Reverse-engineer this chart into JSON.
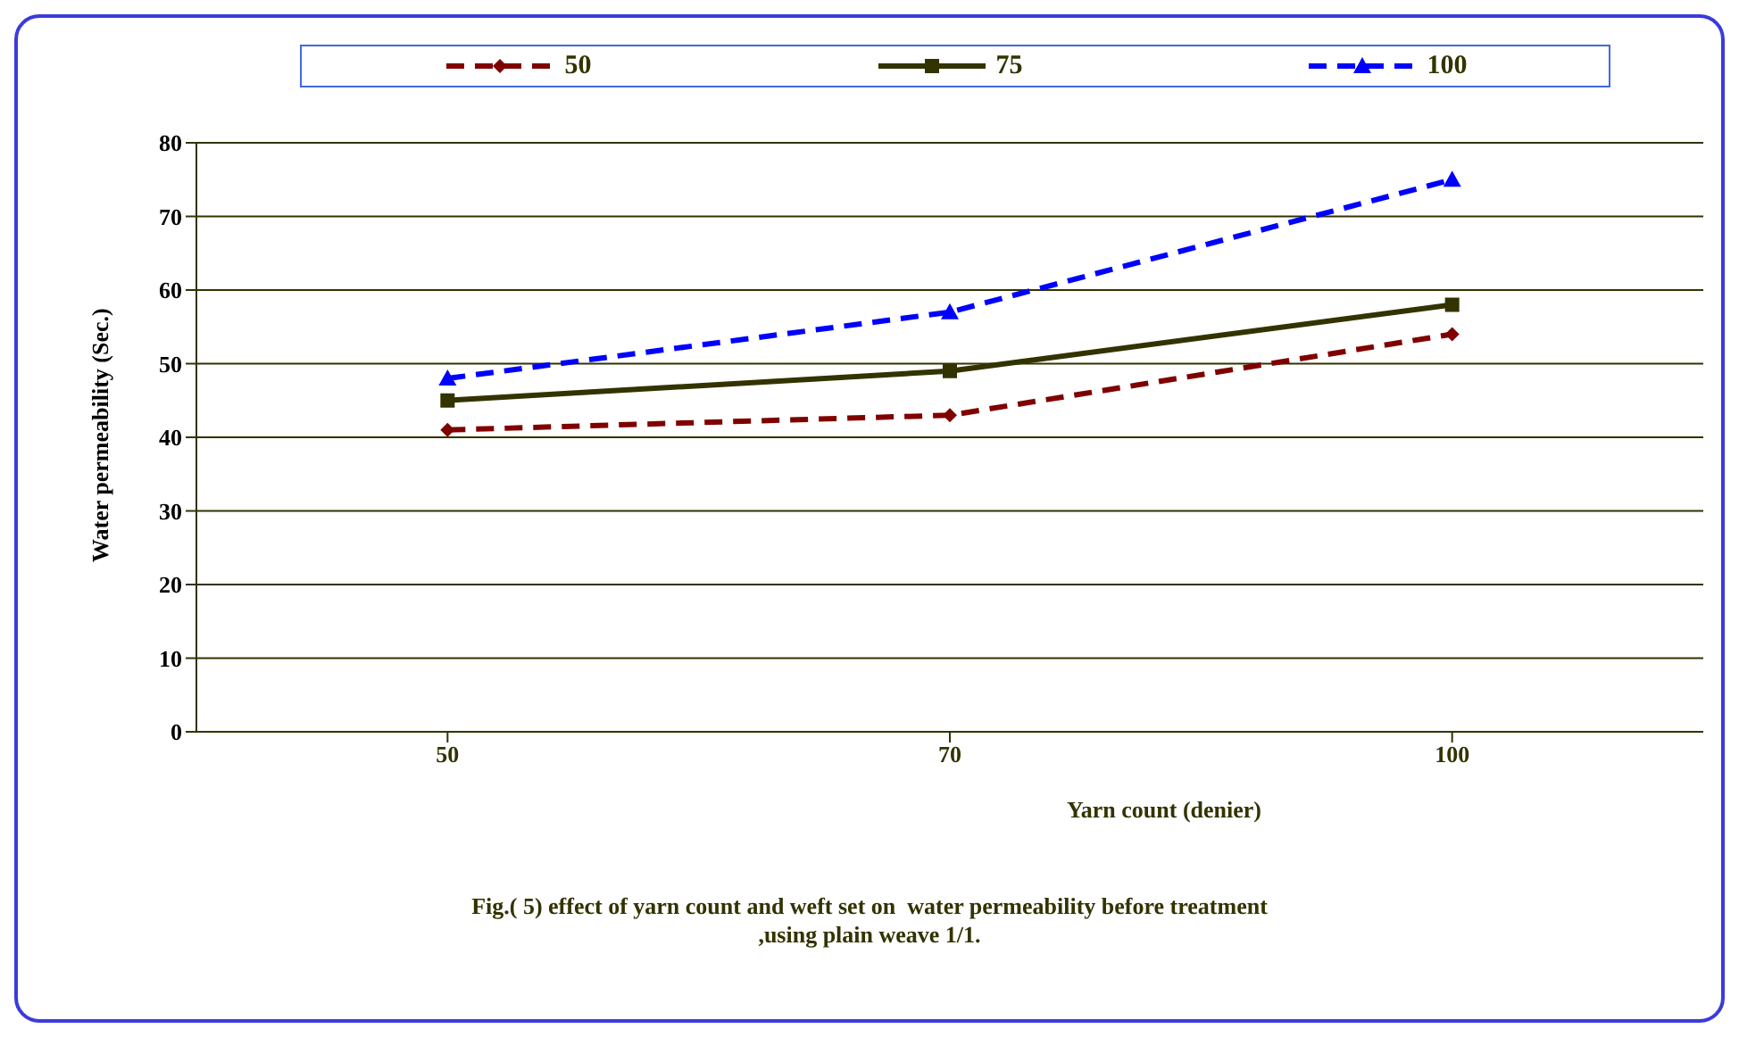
{
  "chart_data": {
    "type": "line",
    "title": "Fig.( 5) effect of yarn count and weft set on  water permeability before treatment\n,using plain weave 1/1.",
    "xlabel": "Yarn  count (denier)",
    "ylabel": "Water permeability (Sec.)",
    "categories": [
      "50",
      "70",
      "100"
    ],
    "series": [
      {
        "name": "50",
        "color": "#800000",
        "values": [
          41,
          43,
          54
        ],
        "marker": "diamond",
        "line_style": "dashed"
      },
      {
        "name": "75",
        "color": "#333300",
        "values": [
          45,
          49,
          58
        ],
        "marker": "square",
        "line_style": "solid"
      },
      {
        "name": "100",
        "color": "#0000ff",
        "values": [
          48,
          57,
          75
        ],
        "marker": "triangle",
        "line_style": "dashed"
      }
    ],
    "ylim": [
      0,
      80
    ],
    "yticks": [
      0,
      10,
      20,
      30,
      40,
      50,
      60,
      70,
      80
    ],
    "grid": "y",
    "legend": "top"
  }
}
